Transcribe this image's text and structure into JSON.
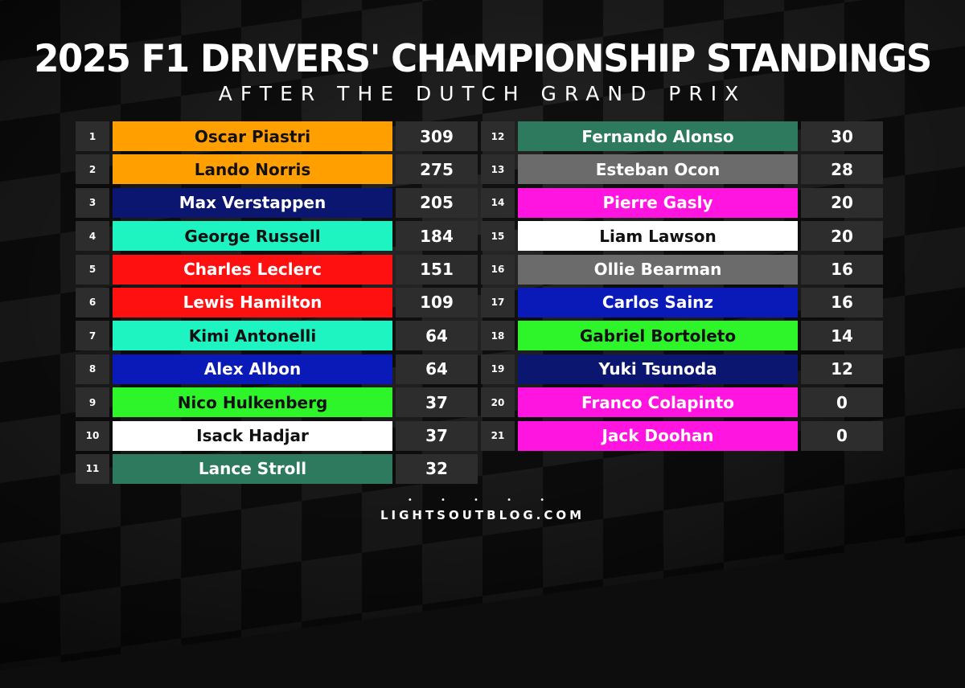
{
  "header": {
    "title": "2025 F1 DRIVERS' CHAMPIONSHIP STANDINGS",
    "subtitle": "AFTER THE DUTCH GRAND PRIX"
  },
  "standings": [
    {
      "pos": "1",
      "name": "Oscar Piastri",
      "points": "309",
      "color": "#FF9F00",
      "text_color": "#111111"
    },
    {
      "pos": "2",
      "name": "Lando Norris",
      "points": "275",
      "color": "#FF9F00",
      "text_color": "#111111"
    },
    {
      "pos": "3",
      "name": "Max Verstappen",
      "points": "205",
      "color": "#0A1670",
      "text_color": "#FFFFFF"
    },
    {
      "pos": "4",
      "name": "George Russell",
      "points": "184",
      "color": "#1EF3C2",
      "text_color": "#111111"
    },
    {
      "pos": "5",
      "name": "Charles Leclerc",
      "points": "151",
      "color": "#FF1010",
      "text_color": "#FFFFFF"
    },
    {
      "pos": "6",
      "name": "Lewis Hamilton",
      "points": "109",
      "color": "#FF1010",
      "text_color": "#FFFFFF"
    },
    {
      "pos": "7",
      "name": "Kimi Antonelli",
      "points": "64",
      "color": "#1EF3C2",
      "text_color": "#111111"
    },
    {
      "pos": "8",
      "name": "Alex Albon",
      "points": "64",
      "color": "#0A1AB8",
      "text_color": "#FFFFFF"
    },
    {
      "pos": "9",
      "name": "Nico Hulkenberg",
      "points": "37",
      "color": "#2EF529",
      "text_color": "#111111"
    },
    {
      "pos": "10",
      "name": "Isack Hadjar",
      "points": "37",
      "color": "#FFFFFF",
      "text_color": "#111111"
    },
    {
      "pos": "11",
      "name": "Lance Stroll",
      "points": "32",
      "color": "#2E7A5E",
      "text_color": "#FFFFFF"
    },
    {
      "pos": "12",
      "name": "Fernando Alonso",
      "points": "30",
      "color": "#2E7A5E",
      "text_color": "#FFFFFF"
    },
    {
      "pos": "13",
      "name": "Esteban Ocon",
      "points": "28",
      "color": "#6B6B6B",
      "text_color": "#FFFFFF"
    },
    {
      "pos": "14",
      "name": "Pierre Gasly",
      "points": "20",
      "color": "#FF14E0",
      "text_color": "#FFFFFF"
    },
    {
      "pos": "15",
      "name": "Liam Lawson",
      "points": "20",
      "color": "#FFFFFF",
      "text_color": "#111111"
    },
    {
      "pos": "16",
      "name": "Ollie Bearman",
      "points": "16",
      "color": "#6B6B6B",
      "text_color": "#FFFFFF"
    },
    {
      "pos": "17",
      "name": "Carlos Sainz",
      "points": "16",
      "color": "#0A1AB8",
      "text_color": "#FFFFFF"
    },
    {
      "pos": "18",
      "name": "Gabriel Bortoleto",
      "points": "14",
      "color": "#2EF529",
      "text_color": "#111111"
    },
    {
      "pos": "19",
      "name": "Yuki Tsunoda",
      "points": "12",
      "color": "#0A1670",
      "text_color": "#FFFFFF"
    },
    {
      "pos": "20",
      "name": "Franco Colapinto",
      "points": "0",
      "color": "#FF14E0",
      "text_color": "#FFFFFF"
    },
    {
      "pos": "21",
      "name": "Jack Doohan",
      "points": "0",
      "color": "#FF14E0",
      "text_color": "#FFFFFF"
    }
  ],
  "footer": {
    "dots": "• • • • •",
    "site": "LIGHTSOUTBLOG.COM"
  }
}
